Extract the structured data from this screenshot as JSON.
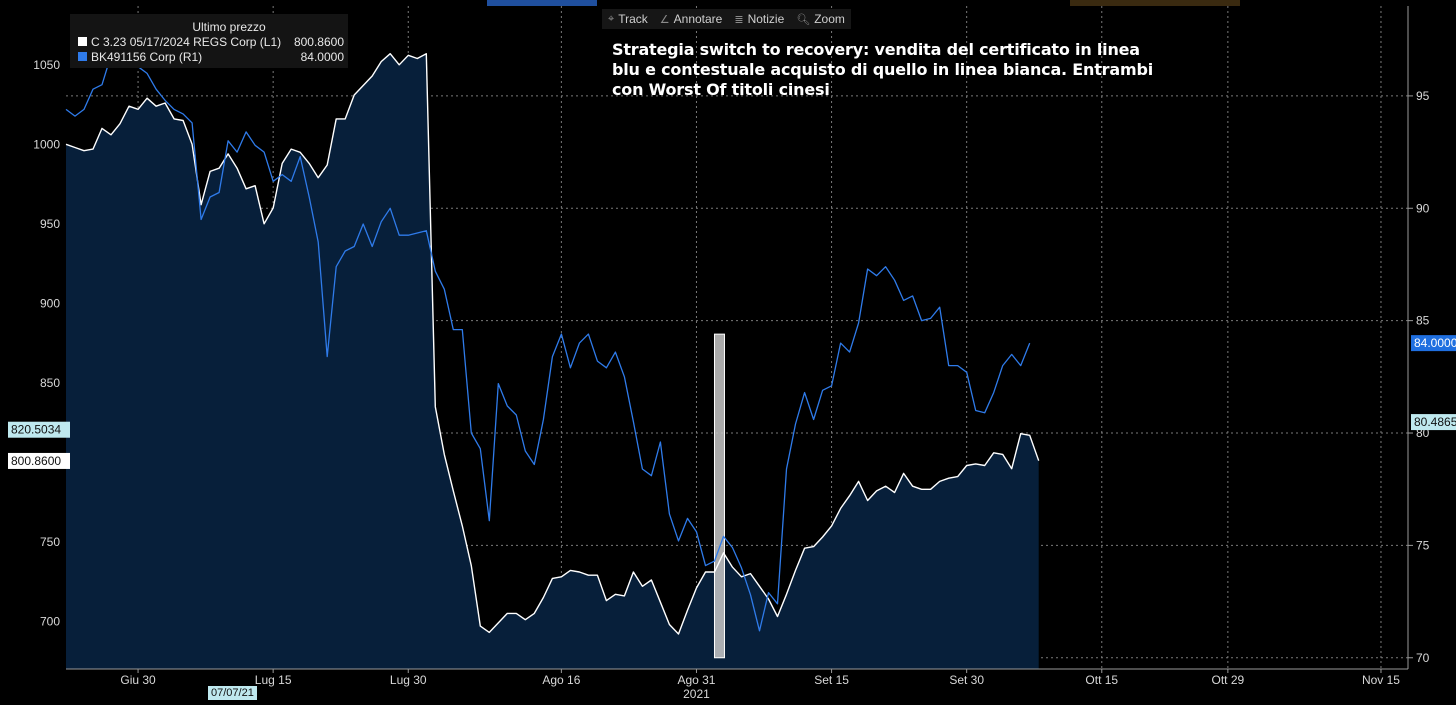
{
  "toolbar": {
    "items": [
      {
        "icon": "crosshair-icon",
        "glyph": "⌖",
        "label": "Track"
      },
      {
        "icon": "pen-icon",
        "glyph": "∠",
        "label": "Annotare"
      },
      {
        "icon": "news-icon",
        "glyph": "≣",
        "label": "Notizie"
      },
      {
        "icon": "magnifier-icon",
        "glyph": "🔍︎",
        "label": "Zoom"
      }
    ]
  },
  "legend": {
    "header": "Ultimo prezzo",
    "series": [
      {
        "name": "C 3.23 05/17/2024 REGS Corp  (L1)",
        "value": "800.8600",
        "color": "#ffffff"
      },
      {
        "name": "BK491156 Corp  (R1)",
        "value": "84.0000",
        "color": "#2f7bea"
      }
    ]
  },
  "annotation": "Strategia switch to recovery: vendita del certificato in linea blu e contestuale acquisto di quello in linea bianca. Entrambi con Worst Of titoli cinesi",
  "date_marker": "07/07/21",
  "colors": {
    "white_line": "#ffffff",
    "blue_line": "#2f7bea",
    "area_fill": "#071f3a",
    "grid": "#7a7a7a",
    "left_tag": "#bfe9ef",
    "right_tag": "#1f6fe0"
  },
  "chart_data": {
    "type": "line",
    "x_axis": {
      "year_label": "2021",
      "tick_labels": [
        "Giu 30",
        "Lug 15",
        "Lug 30",
        "Ago 16",
        "Ago 31",
        "Set 15",
        "Set 30",
        "Ott 15",
        "Ott 29",
        "Nov 15"
      ],
      "tick_dates": [
        "2021-06-30",
        "2021-07-15",
        "2021-07-30",
        "2021-08-16",
        "2021-08-31",
        "2021-09-15",
        "2021-09-30",
        "2021-10-15",
        "2021-10-29",
        "2021-11-15"
      ],
      "range": [
        "2021-06-22",
        "2021-11-18"
      ]
    },
    "left_axis": {
      "ticks": [
        700,
        750,
        800,
        850,
        900,
        950,
        1000,
        1050
      ],
      "range": [
        670,
        1087
      ]
    },
    "right_axis": {
      "ticks": [
        70,
        75,
        80,
        85,
        90,
        95
      ],
      "range": [
        69.5,
        99
      ]
    },
    "left_tags": [
      "820.5034",
      "800.8600"
    ],
    "right_tags": [
      "84.0000",
      "80.4865"
    ],
    "highlight_band": {
      "start": "2021-09-02",
      "end": "2021-09-03",
      "low": 70,
      "high": 84.4
    },
    "series": [
      {
        "name": "C 3.23 05/17/2024 REGS Corp (L1)",
        "axis": "left",
        "filled": true,
        "points": [
          [
            "2021-06-22",
            1000
          ],
          [
            "2021-06-23",
            998
          ],
          [
            "2021-06-24",
            996
          ],
          [
            "2021-06-25",
            997
          ],
          [
            "2021-06-26",
            1010
          ],
          [
            "2021-06-27",
            1006
          ],
          [
            "2021-06-28",
            1013
          ],
          [
            "2021-06-29",
            1024
          ],
          [
            "2021-06-30",
            1022
          ],
          [
            "2021-07-01",
            1029
          ],
          [
            "2021-07-02",
            1024
          ],
          [
            "2021-07-03",
            1026
          ],
          [
            "2021-07-04",
            1016
          ],
          [
            "2021-07-05",
            1015
          ],
          [
            "2021-07-06",
            1000
          ],
          [
            "2021-07-07",
            962
          ],
          [
            "2021-07-08",
            983
          ],
          [
            "2021-07-09",
            985
          ],
          [
            "2021-07-10",
            994
          ],
          [
            "2021-07-11",
            985
          ],
          [
            "2021-07-12",
            972
          ],
          [
            "2021-07-13",
            974
          ],
          [
            "2021-07-14",
            950
          ],
          [
            "2021-07-15",
            960
          ],
          [
            "2021-07-16",
            988
          ],
          [
            "2021-07-17",
            997
          ],
          [
            "2021-07-18",
            995
          ],
          [
            "2021-07-19",
            988
          ],
          [
            "2021-07-20",
            979
          ],
          [
            "2021-07-21",
            987
          ],
          [
            "2021-07-22",
            1016
          ],
          [
            "2021-07-23",
            1016
          ],
          [
            "2021-07-24",
            1031
          ],
          [
            "2021-07-25",
            1037
          ],
          [
            "2021-07-26",
            1043
          ],
          [
            "2021-07-27",
            1052
          ],
          [
            "2021-07-28",
            1057
          ],
          [
            "2021-07-29",
            1050
          ],
          [
            "2021-07-30",
            1056
          ],
          [
            "2021-07-31",
            1054
          ],
          [
            "2021-08-01",
            1057
          ],
          [
            "2021-08-02",
            835
          ],
          [
            "2021-08-03",
            805
          ],
          [
            "2021-08-04",
            782
          ],
          [
            "2021-08-05",
            760
          ],
          [
            "2021-08-06",
            735
          ],
          [
            "2021-08-07",
            697
          ],
          [
            "2021-08-08",
            693
          ],
          [
            "2021-08-09",
            699
          ],
          [
            "2021-08-10",
            705
          ],
          [
            "2021-08-11",
            705
          ],
          [
            "2021-08-12",
            701
          ],
          [
            "2021-08-13",
            705
          ],
          [
            "2021-08-14",
            715
          ],
          [
            "2021-08-15",
            727
          ],
          [
            "2021-08-16",
            728
          ],
          [
            "2021-08-17",
            732
          ],
          [
            "2021-08-18",
            731
          ],
          [
            "2021-08-19",
            729
          ],
          [
            "2021-08-20",
            729
          ],
          [
            "2021-08-21",
            713
          ],
          [
            "2021-08-22",
            717
          ],
          [
            "2021-08-23",
            716
          ],
          [
            "2021-08-24",
            731
          ],
          [
            "2021-08-25",
            722
          ],
          [
            "2021-08-26",
            726
          ],
          [
            "2021-08-27",
            712
          ],
          [
            "2021-08-28",
            698
          ],
          [
            "2021-08-29",
            692
          ],
          [
            "2021-08-30",
            707
          ],
          [
            "2021-08-31",
            721
          ],
          [
            "2021-09-01",
            731
          ],
          [
            "2021-09-02",
            731
          ],
          [
            "2021-09-03",
            743
          ],
          [
            "2021-09-04",
            734
          ],
          [
            "2021-09-05",
            728
          ],
          [
            "2021-09-06",
            730
          ],
          [
            "2021-09-07",
            722
          ],
          [
            "2021-09-08",
            714
          ],
          [
            "2021-09-09",
            703
          ],
          [
            "2021-09-10",
            717
          ],
          [
            "2021-09-11",
            732
          ],
          [
            "2021-09-12",
            746
          ],
          [
            "2021-09-13",
            747
          ],
          [
            "2021-09-14",
            753
          ],
          [
            "2021-09-15",
            760
          ],
          [
            "2021-09-16",
            771
          ],
          [
            "2021-09-17",
            779
          ],
          [
            "2021-09-18",
            788
          ],
          [
            "2021-09-19",
            776
          ],
          [
            "2021-09-20",
            782
          ],
          [
            "2021-09-21",
            785
          ],
          [
            "2021-09-22",
            781
          ],
          [
            "2021-09-23",
            793
          ],
          [
            "2021-09-24",
            785
          ],
          [
            "2021-09-25",
            783
          ],
          [
            "2021-09-26",
            783
          ],
          [
            "2021-09-27",
            788
          ],
          [
            "2021-09-28",
            790
          ],
          [
            "2021-09-29",
            791
          ],
          [
            "2021-09-30",
            798
          ],
          [
            "2021-10-01",
            799
          ],
          [
            "2021-10-02",
            798
          ],
          [
            "2021-10-03",
            806
          ],
          [
            "2021-10-04",
            805
          ],
          [
            "2021-10-05",
            796
          ],
          [
            "2021-10-06",
            818
          ],
          [
            "2021-10-07",
            817
          ],
          [
            "2021-10-08",
            801
          ]
        ]
      },
      {
        "name": "BK491156 Corp (R1)",
        "axis": "right",
        "filled": false,
        "points": [
          [
            "2021-06-22",
            94.4
          ],
          [
            "2021-06-23",
            94.1
          ],
          [
            "2021-06-24",
            94.4
          ],
          [
            "2021-06-25",
            95.3
          ],
          [
            "2021-06-26",
            95.5
          ],
          [
            "2021-06-27",
            96.8
          ],
          [
            "2021-06-28",
            97.3
          ],
          [
            "2021-06-29",
            96.6
          ],
          [
            "2021-06-30",
            96.3
          ],
          [
            "2021-07-01",
            96.0
          ],
          [
            "2021-07-02",
            95.3
          ],
          [
            "2021-07-03",
            94.8
          ],
          [
            "2021-07-04",
            94.4
          ],
          [
            "2021-07-05",
            94.2
          ],
          [
            "2021-07-06",
            93.8
          ],
          [
            "2021-07-07",
            89.5
          ],
          [
            "2021-07-08",
            90.5
          ],
          [
            "2021-07-09",
            90.7
          ],
          [
            "2021-07-10",
            93.0
          ],
          [
            "2021-07-11",
            92.5
          ],
          [
            "2021-07-12",
            93.4
          ],
          [
            "2021-07-13",
            92.8
          ],
          [
            "2021-07-14",
            92.5
          ],
          [
            "2021-07-15",
            91.2
          ],
          [
            "2021-07-16",
            91.5
          ],
          [
            "2021-07-17",
            91.2
          ],
          [
            "2021-07-18",
            92.3
          ],
          [
            "2021-07-19",
            90.5
          ],
          [
            "2021-07-20",
            88.5
          ],
          [
            "2021-07-21",
            83.4
          ],
          [
            "2021-07-22",
            87.4
          ],
          [
            "2021-07-23",
            88.1
          ],
          [
            "2021-07-24",
            88.3
          ],
          [
            "2021-07-25",
            89.3
          ],
          [
            "2021-07-26",
            88.3
          ],
          [
            "2021-07-27",
            89.4
          ],
          [
            "2021-07-28",
            90.0
          ],
          [
            "2021-07-29",
            88.8
          ],
          [
            "2021-07-30",
            88.8
          ],
          [
            "2021-07-31",
            88.9
          ],
          [
            "2021-08-01",
            89.0
          ],
          [
            "2021-08-02",
            87.2
          ],
          [
            "2021-08-03",
            86.4
          ],
          [
            "2021-08-04",
            84.6
          ],
          [
            "2021-08-05",
            84.6
          ],
          [
            "2021-08-06",
            80.0
          ],
          [
            "2021-08-07",
            79.3
          ],
          [
            "2021-08-08",
            76.1
          ],
          [
            "2021-08-09",
            82.2
          ],
          [
            "2021-08-10",
            81.2
          ],
          [
            "2021-08-11",
            80.8
          ],
          [
            "2021-08-12",
            79.2
          ],
          [
            "2021-08-13",
            78.6
          ],
          [
            "2021-08-14",
            80.6
          ],
          [
            "2021-08-15",
            83.4
          ],
          [
            "2021-08-16",
            84.4
          ],
          [
            "2021-08-17",
            82.9
          ],
          [
            "2021-08-18",
            84.0
          ],
          [
            "2021-08-19",
            84.4
          ],
          [
            "2021-08-20",
            83.2
          ],
          [
            "2021-08-21",
            82.9
          ],
          [
            "2021-08-22",
            83.6
          ],
          [
            "2021-08-23",
            82.5
          ],
          [
            "2021-08-24",
            80.5
          ],
          [
            "2021-08-25",
            78.4
          ],
          [
            "2021-08-26",
            78.1
          ],
          [
            "2021-08-27",
            79.6
          ],
          [
            "2021-08-28",
            76.4
          ],
          [
            "2021-08-29",
            75.2
          ],
          [
            "2021-08-30",
            76.2
          ],
          [
            "2021-08-31",
            75.6
          ],
          [
            "2021-09-01",
            74.1
          ],
          [
            "2021-09-02",
            74.3
          ],
          [
            "2021-09-03",
            75.4
          ],
          [
            "2021-09-04",
            74.9
          ],
          [
            "2021-09-05",
            74.0
          ],
          [
            "2021-09-06",
            72.8
          ],
          [
            "2021-09-07",
            71.2
          ],
          [
            "2021-09-08",
            72.9
          ],
          [
            "2021-09-09",
            72.4
          ],
          [
            "2021-09-10",
            78.4
          ],
          [
            "2021-09-11",
            80.4
          ],
          [
            "2021-09-12",
            81.8
          ],
          [
            "2021-09-13",
            80.6
          ],
          [
            "2021-09-14",
            81.9
          ],
          [
            "2021-09-15",
            82.1
          ],
          [
            "2021-09-16",
            84.0
          ],
          [
            "2021-09-17",
            83.6
          ],
          [
            "2021-09-18",
            84.9
          ],
          [
            "2021-09-19",
            87.3
          ],
          [
            "2021-09-20",
            87.0
          ],
          [
            "2021-09-21",
            87.4
          ],
          [
            "2021-09-22",
            86.8
          ],
          [
            "2021-09-23",
            85.9
          ],
          [
            "2021-09-24",
            86.1
          ],
          [
            "2021-09-25",
            85.0
          ],
          [
            "2021-09-26",
            85.1
          ],
          [
            "2021-09-27",
            85.6
          ],
          [
            "2021-09-28",
            83.0
          ],
          [
            "2021-09-29",
            83.0
          ],
          [
            "2021-09-30",
            82.7
          ],
          [
            "2021-10-01",
            81.0
          ],
          [
            "2021-10-02",
            80.9
          ],
          [
            "2021-10-03",
            81.8
          ],
          [
            "2021-10-04",
            83.0
          ],
          [
            "2021-10-05",
            83.5
          ],
          [
            "2021-10-06",
            83.0
          ],
          [
            "2021-10-07",
            84.0
          ]
        ]
      }
    ]
  }
}
